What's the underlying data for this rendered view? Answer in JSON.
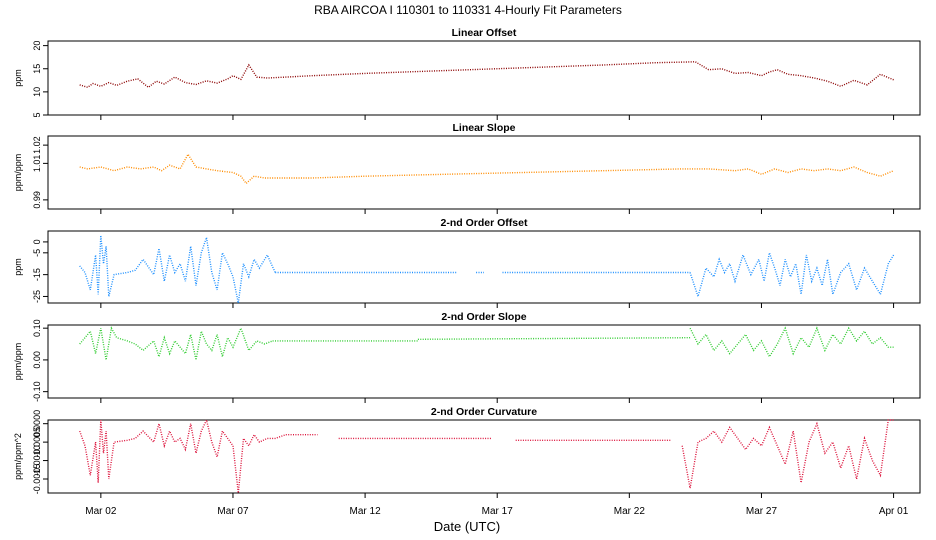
{
  "title": "RBA   AIRCOA I   110301 to 110331   4-Hourly Fit Parameters",
  "xlabel": "Date (UTC)",
  "xticks": [
    "Mar 02",
    "Mar 07",
    "Mar 12",
    "Mar 17",
    "Mar 22",
    "Mar 27",
    "Apr 01"
  ],
  "chart_data": [
    {
      "type": "line",
      "title": "Linear Offset",
      "ylabel": "ppm",
      "color": "#8b0000",
      "yticks": [
        "5",
        "10",
        "15",
        "20"
      ],
      "ylim": [
        5,
        21
      ],
      "xlim": [
        0.0,
        33.0
      ],
      "series": [
        {
          "x": [
            1.2,
            1.5,
            1.7,
            2.0,
            2.3,
            2.6,
            3.0,
            3.4,
            3.8,
            4.1,
            4.4,
            4.8,
            5.2,
            5.6,
            6.0,
            6.4,
            6.8,
            7.0,
            7.3,
            7.6,
            7.9,
            8.3,
            9.0,
            10.0,
            12.0,
            15.0,
            18.0,
            21.0,
            23.0,
            24.5,
            25.0,
            25.5,
            26.0,
            26.5,
            27.0,
            27.3,
            27.6,
            28.0,
            28.5,
            29.0,
            29.5,
            30.0,
            30.5,
            31.0,
            31.5,
            32.0
          ],
          "y": [
            11.5,
            11.0,
            11.8,
            11.2,
            12.0,
            11.4,
            12.3,
            12.8,
            11.0,
            12.3,
            11.7,
            13.2,
            12.0,
            11.6,
            12.4,
            11.9,
            12.8,
            13.5,
            12.7,
            15.8,
            13.2,
            13.0,
            13.2,
            13.5,
            14.0,
            14.6,
            15.2,
            15.8,
            16.3,
            16.5,
            14.8,
            15.0,
            14.0,
            14.2,
            13.5,
            14.3,
            14.8,
            13.8,
            13.5,
            13.0,
            12.3,
            11.2,
            12.5,
            11.5,
            13.8,
            12.6
          ]
        }
      ]
    },
    {
      "type": "line",
      "title": "Linear Slope",
      "ylabel": "ppm/ppm",
      "color": "#ff8c00",
      "yticks": [
        "0.99",
        "1.01",
        "1.02"
      ],
      "ylim": [
        0.985,
        1.025
      ],
      "xlim": [
        0.0,
        33.0
      ],
      "series": [
        {
          "x": [
            1.2,
            1.5,
            2.0,
            2.5,
            3.0,
            3.5,
            4.0,
            4.3,
            4.6,
            5.0,
            5.3,
            5.6,
            6.0,
            6.4,
            7.0,
            7.3,
            7.5,
            7.8,
            8.2,
            9.0,
            10.0,
            12.0,
            15.0,
            18.0,
            21.0,
            24.0,
            25.0,
            26.0,
            26.5,
            27.0,
            27.5,
            28.0,
            28.5,
            29.0,
            29.5,
            30.0,
            30.5,
            31.0,
            31.5,
            32.0
          ],
          "y": [
            1.008,
            1.007,
            1.008,
            1.006,
            1.008,
            1.007,
            1.008,
            1.006,
            1.009,
            1.007,
            1.015,
            1.008,
            1.007,
            1.006,
            1.005,
            1.003,
            0.999,
            1.003,
            1.002,
            1.002,
            1.002,
            1.003,
            1.004,
            1.005,
            1.006,
            1.007,
            1.007,
            1.006,
            1.007,
            1.004,
            1.007,
            1.005,
            1.007,
            1.006,
            1.007,
            1.006,
            1.008,
            1.005,
            1.003,
            1.006
          ]
        }
      ]
    },
    {
      "type": "line",
      "title": "2-nd Order Offset",
      "ylabel": "ppm",
      "color": "#1e90ff",
      "yticks": [
        "-25",
        "-15",
        "-5",
        "0"
      ],
      "ylim": [
        -28,
        5
      ],
      "xlim": [
        0.0,
        33.0
      ],
      "series": [
        {
          "x": [
            1.2,
            1.4,
            1.6,
            1.8,
            1.9,
            2.0,
            2.1,
            2.2,
            2.3,
            2.5,
            3.0,
            3.3,
            3.6,
            4.0,
            4.2,
            4.4,
            4.6,
            4.8,
            5.0,
            5.2,
            5.4,
            5.6,
            5.8,
            6.0,
            6.2,
            6.4,
            6.6,
            6.8,
            7.0,
            7.2,
            7.4,
            7.6,
            7.8,
            8.0,
            8.3,
            8.6
          ],
          "y": [
            -11,
            -14,
            -22,
            -6,
            -24,
            3,
            -10,
            -2,
            -25,
            -15,
            -14,
            -13,
            -8,
            -15,
            -3,
            -18,
            -6,
            -14,
            -10,
            -18,
            -2,
            -20,
            -5,
            2,
            -14,
            -22,
            -5,
            -10,
            -16,
            -28,
            -10,
            -16,
            -8,
            -12,
            -6,
            -14
          ]
        },
        {
          "x": [
            8.6,
            15.5
          ],
          "y": [
            -14,
            -14
          ]
        },
        {
          "x": [
            16.2,
            16.5
          ],
          "y": [
            -14,
            -14
          ]
        },
        {
          "x": [
            17.2,
            24.3
          ],
          "y": [
            -14,
            -14
          ]
        },
        {
          "x": [
            24.3,
            24.6,
            24.9,
            25.2,
            25.4,
            25.6,
            25.8,
            26.0,
            26.3,
            26.6,
            26.9,
            27.1,
            27.3,
            27.5,
            27.7,
            27.9,
            28.1,
            28.3,
            28.5,
            28.7,
            28.9,
            29.1,
            29.3,
            29.5,
            29.7,
            30.0,
            30.3,
            30.6,
            30.9,
            31.2,
            31.5,
            31.8,
            32.0
          ],
          "y": [
            -14,
            -25,
            -12,
            -16,
            -8,
            -14,
            -10,
            -18,
            -6,
            -15,
            -8,
            -18,
            -5,
            -12,
            -20,
            -8,
            -16,
            -10,
            -24,
            -6,
            -18,
            -12,
            -20,
            -8,
            -24,
            -14,
            -10,
            -22,
            -12,
            -18,
            -24,
            -10,
            -6
          ]
        }
      ]
    },
    {
      "type": "line",
      "title": "2-nd Order Slope",
      "ylabel": "ppm/ppm",
      "color": "#32cd32",
      "yticks": [
        "-0.10",
        "0.00",
        "0.10"
      ],
      "ylim": [
        -0.12,
        0.11
      ],
      "xlim": [
        0.0,
        33.0
      ],
      "series": [
        {
          "x": [
            1.2,
            1.4,
            1.6,
            1.8,
            2.0,
            2.2,
            2.4,
            2.6,
            3.0,
            3.3,
            3.6,
            4.0,
            4.2,
            4.4,
            4.6,
            4.8,
            5.0,
            5.2,
            5.4,
            5.6,
            5.8,
            6.0,
            6.2,
            6.4,
            6.6,
            6.8,
            7.0,
            7.3,
            7.6,
            7.9,
            8.2,
            8.5
          ],
          "y": [
            0.05,
            0.07,
            0.09,
            0.02,
            0.1,
            0.0,
            0.1,
            0.07,
            0.06,
            0.05,
            0.03,
            0.06,
            0.01,
            0.07,
            0.02,
            0.06,
            0.04,
            0.02,
            0.08,
            0.0,
            0.09,
            0.05,
            0.03,
            0.08,
            0.01,
            0.07,
            0.04,
            0.1,
            0.03,
            0.06,
            0.05,
            0.06
          ]
        },
        {
          "x": [
            8.5,
            14.0
          ],
          "y": [
            0.06,
            0.06
          ]
        },
        {
          "x": [
            14.0,
            24.3
          ],
          "y": [
            0.065,
            0.07
          ]
        },
        {
          "x": [
            24.3,
            24.6,
            24.9,
            25.2,
            25.5,
            25.8,
            26.1,
            26.4,
            26.7,
            27.0,
            27.3,
            27.6,
            27.9,
            28.2,
            28.5,
            28.8,
            29.1,
            29.4,
            29.7,
            30.0,
            30.3,
            30.6,
            30.9,
            31.2,
            31.5,
            31.8,
            32.0
          ],
          "y": [
            0.1,
            0.05,
            0.08,
            0.03,
            0.06,
            0.02,
            0.05,
            0.08,
            0.03,
            0.06,
            0.01,
            0.05,
            0.1,
            0.02,
            0.07,
            0.04,
            0.1,
            0.03,
            0.08,
            0.05,
            0.1,
            0.06,
            0.09,
            0.05,
            0.07,
            0.04,
            0.04
          ]
        }
      ]
    },
    {
      "type": "line",
      "title": "2-nd Order Curvature",
      "ylabel": "ppm/ppm^2",
      "color": "#dc143c",
      "yticks": [
        "-0.0015",
        "-0.0010",
        "-0.0005",
        "0.0000"
      ],
      "ylim": [
        -0.00188,
        0.0001
      ],
      "xlim": [
        0.0,
        33.0
      ],
      "series": [
        {
          "x": [
            1.2,
            1.4,
            1.6,
            1.8,
            1.9,
            2.0,
            2.1,
            2.2,
            2.3,
            2.5,
            3.0,
            3.3,
            3.6,
            4.0,
            4.2,
            4.4,
            4.6,
            4.8,
            5.0,
            5.2,
            5.4,
            5.6,
            5.8,
            6.0,
            6.2,
            6.4,
            6.6,
            6.8,
            7.0,
            7.2,
            7.4,
            7.6,
            7.8,
            8.0,
            8.3,
            8.6,
            9.0
          ],
          "y": [
            -0.0002,
            -0.0006,
            -0.0014,
            -0.0005,
            -0.0016,
            0.0001,
            -0.0008,
            -0.0002,
            -0.0015,
            -0.0005,
            -0.00045,
            -0.0004,
            -0.0002,
            -0.0005,
            0.0,
            -0.0006,
            -0.0002,
            -0.0005,
            -0.0004,
            -0.0007,
            0.0,
            -0.0008,
            -0.0002,
            0.0001,
            -0.0005,
            -0.0009,
            -0.0002,
            -0.0004,
            -0.0006,
            -0.00188,
            -0.0004,
            -0.0006,
            -0.0003,
            -0.0005,
            -0.0004,
            -0.0004,
            -0.0003
          ]
        },
        {
          "x": [
            9.0,
            10.2
          ],
          "y": [
            -0.0003,
            -0.0003
          ]
        },
        {
          "x": [
            11.0,
            16.8
          ],
          "y": [
            -0.0004,
            -0.0004
          ]
        },
        {
          "x": [
            17.7,
            23.6
          ],
          "y": [
            -0.00045,
            -0.00045
          ]
        },
        {
          "x": [
            24.0,
            24.3,
            24.6,
            24.9,
            25.2,
            25.5,
            25.8,
            26.1,
            26.4,
            26.7,
            27.0,
            27.3,
            27.6,
            27.9,
            28.2,
            28.5,
            28.8,
            29.1,
            29.4,
            29.7,
            30.0,
            30.3,
            30.6,
            30.9,
            31.2,
            31.5,
            31.8,
            32.0
          ],
          "y": [
            -0.0006,
            -0.00175,
            -0.0005,
            -0.0004,
            -0.0002,
            -0.0005,
            -0.0001,
            -0.0004,
            -0.0007,
            -0.0004,
            -0.0006,
            -0.0001,
            -0.0006,
            -0.0011,
            -0.0002,
            -0.0016,
            -0.0005,
            0.0,
            -0.0008,
            -0.0005,
            -0.0012,
            -0.0006,
            -0.0015,
            -0.0004,
            -0.001,
            -0.0014,
            0.0001,
            0.0001
          ]
        }
      ]
    }
  ]
}
